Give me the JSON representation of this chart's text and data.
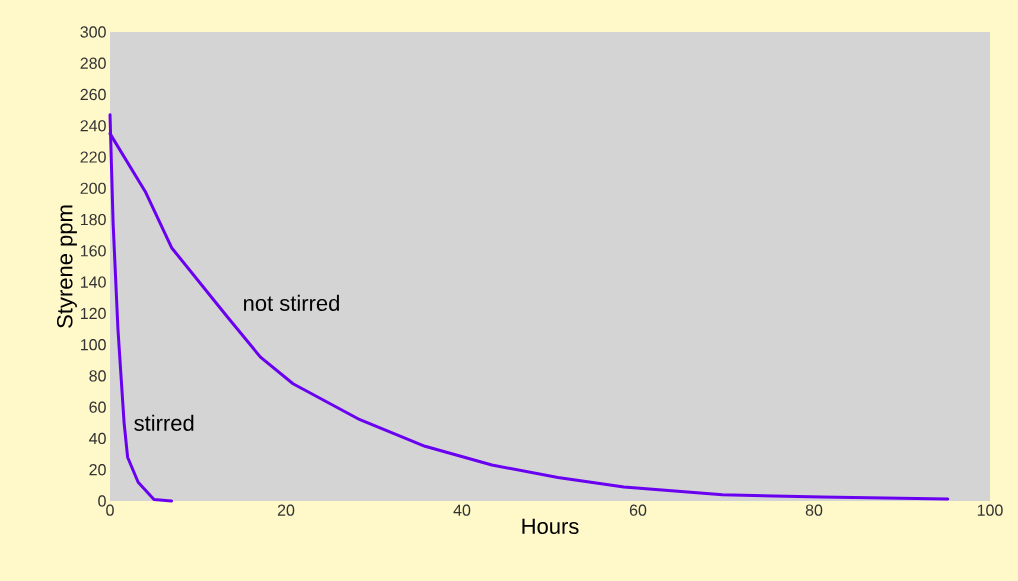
{
  "chart_data": {
    "type": "line",
    "xlabel": "Hours",
    "ylabel": "Styrene ppm",
    "xlim": [
      0,
      100
    ],
    "xticks": [
      0,
      20,
      40,
      60,
      80,
      100
    ],
    "ylim": [
      0,
      300
    ],
    "yticks": [
      0,
      20,
      40,
      60,
      80,
      100,
      120,
      140,
      160,
      180,
      200,
      220,
      240,
      260,
      280,
      300
    ],
    "grid": false,
    "legend": false,
    "marker": "none",
    "line_style": "solid",
    "series": [
      {
        "name": "stirred",
        "color": "#6a00f0",
        "x": [
          0,
          0.35,
          0.9,
          1.6,
          2.0,
          3.2,
          5,
          7
        ],
        "values": [
          247,
          178,
          110,
          50,
          28,
          12,
          1,
          0
        ]
      },
      {
        "name": "not stirred",
        "color": "#6a00f0",
        "x": [
          0,
          4,
          7,
          13.3,
          17.1,
          20.8,
          28.4,
          35.8,
          43.4,
          50.9,
          58.4,
          69.6,
          80.9,
          95.2
        ],
        "values": [
          235,
          198,
          162,
          118,
          92,
          75,
          52,
          35,
          23,
          15,
          9,
          4,
          2.5,
          1.3
        ]
      }
    ]
  }
}
